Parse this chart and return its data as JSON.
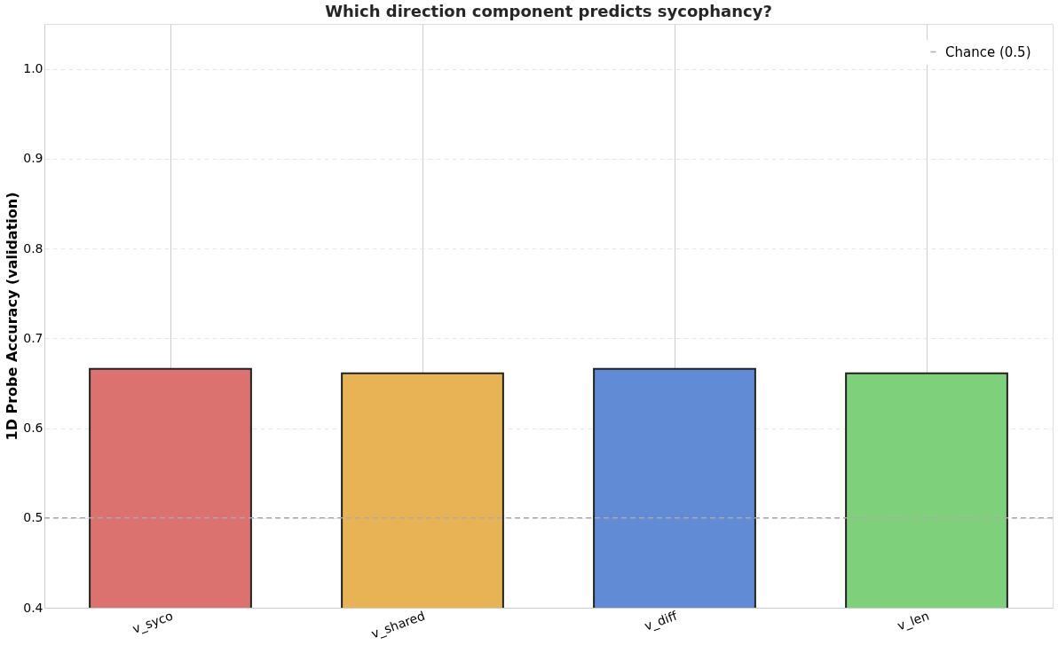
{
  "chart_data": {
    "type": "bar",
    "title": "Which direction component predicts sycophancy?",
    "ylabel": "1D Probe Accuracy (validation)",
    "categories": [
      "v_syco",
      "v_shared",
      "v_diff",
      "v_len"
    ],
    "values": [
      0.666,
      0.661,
      0.666,
      0.661
    ],
    "colors": [
      "#db7270",
      "#e8b355",
      "#628bd5",
      "#7ed07b"
    ],
    "ylim": [
      0.4,
      1.05
    ],
    "yticks": [
      0.4,
      0.5,
      0.6,
      0.7,
      0.8,
      0.9,
      {
        "value": 1,
        "label": "1.0"
      }
    ],
    "ref_lines": [
      {
        "axis": "y",
        "value": 0.5,
        "label": "Chance (0.5)",
        "color": "#aaaaaa",
        "line_style": "dashed"
      }
    ],
    "grid": true,
    "legend": "top right"
  }
}
